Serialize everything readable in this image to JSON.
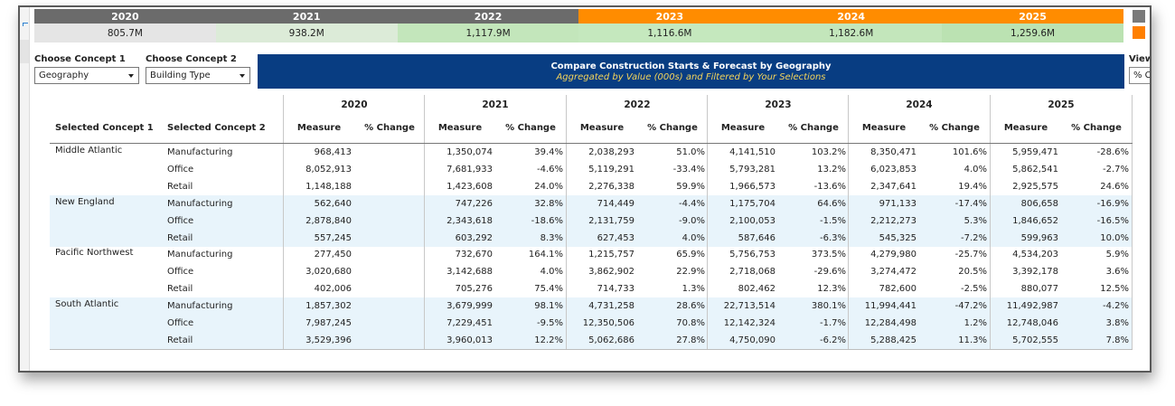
{
  "year_strip": {
    "years": [
      {
        "year": "2020",
        "total": "805.7M",
        "kind": "actual",
        "bg": "#e5e5e5"
      },
      {
        "year": "2021",
        "total": "938.2M",
        "kind": "actual",
        "bg": "#dcebd8"
      },
      {
        "year": "2022",
        "total": "1,117.9M",
        "kind": "actual",
        "bg": "#c3e6bb"
      },
      {
        "year": "2023",
        "total": "1,116.6M",
        "kind": "forecast",
        "bg": "#c5e8be"
      },
      {
        "year": "2024",
        "total": "1,182.6M",
        "kind": "forecast",
        "bg": "#c3e6bb"
      },
      {
        "year": "2025",
        "total": "1,259.6M",
        "kind": "forecast",
        "bg": "#bbe2b2"
      }
    ],
    "colors": {
      "actual": "#6b6b6b",
      "forecast": "#ff8c00"
    }
  },
  "controls": {
    "concept1": {
      "label": "Choose Concept 1",
      "value": "Geography"
    },
    "concept2": {
      "label": "Choose Concept 2",
      "value": "Building Type"
    },
    "view": {
      "label": "View",
      "value": "% C"
    }
  },
  "banner": {
    "title": "Compare Construction Starts & Forecast by Geography",
    "subtitle": "Aggregated by Value (000s) and Filtered by Your Selections"
  },
  "table": {
    "row_headers": [
      "Selected Concept 1",
      "Selected Concept 2"
    ],
    "years": [
      "2020",
      "2021",
      "2022",
      "2023",
      "2024",
      "2025"
    ],
    "sub_headers": [
      "Measure",
      "% Change"
    ],
    "groups": [
      {
        "region": "Middle Atlantic",
        "rows": [
          {
            "type": "Manufacturing",
            "values": [
              [
                "968,413",
                ""
              ],
              [
                "1,350,074",
                "39.4%"
              ],
              [
                "2,038,293",
                "51.0%"
              ],
              [
                "4,141,510",
                "103.2%"
              ],
              [
                "8,350,471",
                "101.6%"
              ],
              [
                "5,959,471",
                "-28.6%"
              ]
            ]
          },
          {
            "type": "Office",
            "values": [
              [
                "8,052,913",
                ""
              ],
              [
                "7,681,933",
                "-4.6%"
              ],
              [
                "5,119,291",
                "-33.4%"
              ],
              [
                "5,793,281",
                "13.2%"
              ],
              [
                "6,023,853",
                "4.0%"
              ],
              [
                "5,862,541",
                "-2.7%"
              ]
            ]
          },
          {
            "type": "Retail",
            "values": [
              [
                "1,148,188",
                ""
              ],
              [
                "1,423,608",
                "24.0%"
              ],
              [
                "2,276,338",
                "59.9%"
              ],
              [
                "1,966,573",
                "-13.6%"
              ],
              [
                "2,347,641",
                "19.4%"
              ],
              [
                "2,925,575",
                "24.6%"
              ]
            ]
          }
        ]
      },
      {
        "region": "New England",
        "rows": [
          {
            "type": "Manufacturing",
            "values": [
              [
                "562,640",
                ""
              ],
              [
                "747,226",
                "32.8%"
              ],
              [
                "714,449",
                "-4.4%"
              ],
              [
                "1,175,704",
                "64.6%"
              ],
              [
                "971,133",
                "-17.4%"
              ],
              [
                "806,658",
                "-16.9%"
              ]
            ]
          },
          {
            "type": "Office",
            "values": [
              [
                "2,878,840",
                ""
              ],
              [
                "2,343,618",
                "-18.6%"
              ],
              [
                "2,131,759",
                "-9.0%"
              ],
              [
                "2,100,053",
                "-1.5%"
              ],
              [
                "2,212,273",
                "5.3%"
              ],
              [
                "1,846,652",
                "-16.5%"
              ]
            ]
          },
          {
            "type": "Retail",
            "values": [
              [
                "557,245",
                ""
              ],
              [
                "603,292",
                "8.3%"
              ],
              [
                "627,453",
                "4.0%"
              ],
              [
                "587,646",
                "-6.3%"
              ],
              [
                "545,325",
                "-7.2%"
              ],
              [
                "599,963",
                "10.0%"
              ]
            ]
          }
        ]
      },
      {
        "region": "Pacific Northwest",
        "rows": [
          {
            "type": "Manufacturing",
            "values": [
              [
                "277,450",
                ""
              ],
              [
                "732,670",
                "164.1%"
              ],
              [
                "1,215,757",
                "65.9%"
              ],
              [
                "5,756,753",
                "373.5%"
              ],
              [
                "4,279,980",
                "-25.7%"
              ],
              [
                "4,534,203",
                "5.9%"
              ]
            ]
          },
          {
            "type": "Office",
            "values": [
              [
                "3,020,680",
                ""
              ],
              [
                "3,142,688",
                "4.0%"
              ],
              [
                "3,862,902",
                "22.9%"
              ],
              [
                "2,718,068",
                "-29.6%"
              ],
              [
                "3,274,472",
                "20.5%"
              ],
              [
                "3,392,178",
                "3.6%"
              ]
            ]
          },
          {
            "type": "Retail",
            "values": [
              [
                "402,006",
                ""
              ],
              [
                "705,276",
                "75.4%"
              ],
              [
                "714,733",
                "1.3%"
              ],
              [
                "802,462",
                "12.3%"
              ],
              [
                "782,600",
                "-2.5%"
              ],
              [
                "880,077",
                "12.5%"
              ]
            ]
          }
        ]
      },
      {
        "region": "South Atlantic",
        "rows": [
          {
            "type": "Manufacturing",
            "values": [
              [
                "1,857,302",
                ""
              ],
              [
                "3,679,999",
                "98.1%"
              ],
              [
                "4,731,258",
                "28.6%"
              ],
              [
                "22,713,514",
                "380.1%"
              ],
              [
                "11,994,441",
                "-47.2%"
              ],
              [
                "11,492,987",
                "-4.2%"
              ]
            ]
          },
          {
            "type": "Office",
            "values": [
              [
                "7,987,245",
                ""
              ],
              [
                "7,229,451",
                "-9.5%"
              ],
              [
                "12,350,506",
                "70.8%"
              ],
              [
                "12,142,324",
                "-1.7%"
              ],
              [
                "12,284,498",
                "1.2%"
              ],
              [
                "12,748,046",
                "3.8%"
              ]
            ]
          },
          {
            "type": "Retail",
            "values": [
              [
                "3,529,396",
                ""
              ],
              [
                "3,960,013",
                "12.2%"
              ],
              [
                "5,062,686",
                "27.8%"
              ],
              [
                "4,750,090",
                "-6.2%"
              ],
              [
                "5,288,425",
                "11.3%"
              ],
              [
                "5,702,555",
                "7.8%"
              ]
            ]
          }
        ]
      }
    ]
  }
}
